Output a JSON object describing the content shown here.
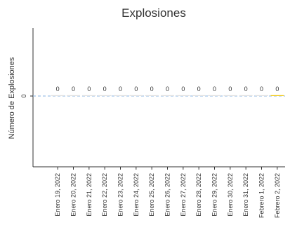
{
  "chart_data": {
    "type": "bar",
    "title": "Explosiones",
    "xlabel": "",
    "ylabel": "Número de Explosiones",
    "categories": [
      "Enero 19, 2022",
      "Enero 20, 2022",
      "Enero 21, 2022",
      "Enero 22, 2022",
      "Enero 23, 2022",
      "Enero 24, 2022",
      "Enero 25, 2022",
      "Enero 26, 2022",
      "Enero 27, 2022",
      "Enero 28, 2022",
      "Enero 29, 2022",
      "Enero 30, 2022",
      "Enero 31, 2022",
      "Febrero 1, 2022",
      "Febrero 2, 2022"
    ],
    "values": [
      0,
      0,
      0,
      0,
      0,
      0,
      0,
      0,
      0,
      0,
      0,
      0,
      0,
      0,
      0
    ],
    "data_labels": [
      "0",
      "0",
      "0",
      "0",
      "0",
      "0",
      "0",
      "0",
      "0",
      "0",
      "0",
      "0",
      "0",
      "0",
      "0"
    ],
    "yticks": [
      0
    ],
    "ytick_labels": [
      "0"
    ],
    "reference_line_value": 0,
    "grid": false,
    "legend": "none",
    "colors": {
      "reference_line": "#87b3e0",
      "bars": [
        "#e0e0e0",
        "#e0e0e0",
        "#e0e0e0",
        "#e0e0e0",
        "#e0e0e0",
        "#e0e0e0",
        "#e0e0e0",
        "#e0e0e0",
        "#e0e0e0",
        "#e0e0e0",
        "#e0e0e0",
        "#e0e0e0",
        "#e0e0e0",
        "#e0e0e0",
        "#f2c811"
      ],
      "text": "#333333",
      "axis": "#333333"
    }
  }
}
